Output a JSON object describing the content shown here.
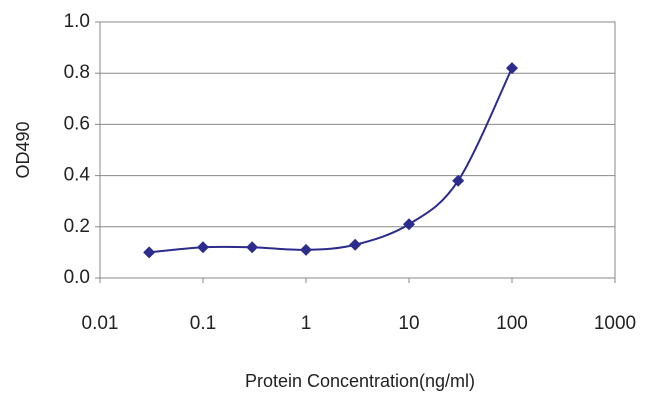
{
  "chart_data": {
    "type": "line",
    "xlabel": "Protein Concentration(ng/ml)",
    "ylabel": "OD490",
    "x": [
      0.03,
      0.1,
      0.3,
      1,
      3,
      10,
      30,
      100
    ],
    "series": [
      {
        "color": "#2c2c8c",
        "values": [
          0.1,
          0.12,
          0.12,
          0.11,
          0.13,
          0.21,
          0.38,
          0.82
        ]
      }
    ],
    "xlim": [
      0.01,
      1000
    ],
    "xticks": [
      0.01,
      0.1,
      1,
      10,
      100,
      1000
    ],
    "xscale": "log",
    "ylim": [
      0,
      1
    ],
    "yticks": [
      {
        "value": 0,
        "label": "0.0"
      },
      0.2,
      0.4,
      0.6,
      0.8,
      {
        "value": 1,
        "label": "1.0"
      }
    ],
    "grid": true
  }
}
